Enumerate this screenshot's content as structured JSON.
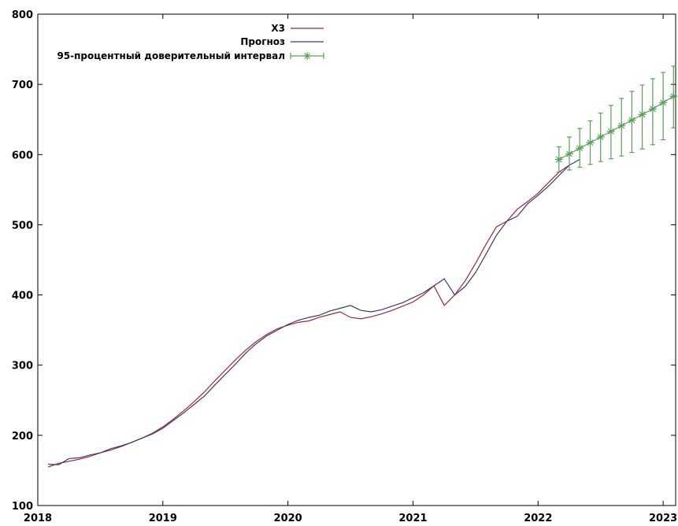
{
  "chart_data": {
    "type": "line",
    "title": "",
    "xlabel": "",
    "ylabel": "",
    "xlim": [
      2018.0,
      2023.1
    ],
    "ylim": [
      100,
      800
    ],
    "x_ticks": [
      "2018",
      "2019",
      "2020",
      "2021",
      "2022",
      "2023"
    ],
    "y_ticks": [
      "100",
      "200",
      "300",
      "400",
      "500",
      "600",
      "700",
      "800"
    ],
    "grid": false,
    "legend_position": "top-left",
    "series": [
      {
        "name": "X3",
        "color": "#a0282f",
        "points": [
          [
            2018.083,
            155
          ],
          [
            2018.167,
            160
          ],
          [
            2018.25,
            163
          ],
          [
            2018.333,
            166
          ],
          [
            2018.417,
            170
          ],
          [
            2018.5,
            175
          ],
          [
            2018.583,
            179
          ],
          [
            2018.667,
            184
          ],
          [
            2018.75,
            190
          ],
          [
            2018.833,
            196
          ],
          [
            2018.917,
            203
          ],
          [
            2019.0,
            212
          ],
          [
            2019.083,
            223
          ],
          [
            2019.167,
            235
          ],
          [
            2019.25,
            248
          ],
          [
            2019.333,
            262
          ],
          [
            2019.417,
            278
          ],
          [
            2019.5,
            293
          ],
          [
            2019.583,
            308
          ],
          [
            2019.667,
            322
          ],
          [
            2019.75,
            334
          ],
          [
            2019.833,
            344
          ],
          [
            2019.917,
            352
          ],
          [
            2020.0,
            357
          ],
          [
            2020.083,
            361
          ],
          [
            2020.167,
            363
          ],
          [
            2020.25,
            368
          ],
          [
            2020.333,
            372
          ],
          [
            2020.417,
            376
          ],
          [
            2020.5,
            368
          ],
          [
            2020.583,
            366
          ],
          [
            2020.667,
            369
          ],
          [
            2020.75,
            373
          ],
          [
            2020.833,
            378
          ],
          [
            2020.917,
            384
          ],
          [
            2021.0,
            390
          ],
          [
            2021.083,
            400
          ],
          [
            2021.167,
            413
          ],
          [
            2021.25,
            385
          ],
          [
            2021.333,
            400
          ],
          [
            2021.417,
            420
          ],
          [
            2021.5,
            445
          ],
          [
            2021.583,
            472
          ],
          [
            2021.667,
            497
          ],
          [
            2021.75,
            505
          ],
          [
            2021.833,
            522
          ],
          [
            2021.917,
            533
          ],
          [
            2022.0,
            545
          ],
          [
            2022.083,
            560
          ],
          [
            2022.167,
            575
          ],
          [
            2022.25,
            585
          ]
        ]
      },
      {
        "name": "Прогноз",
        "color": "#3a3a7a",
        "points": [
          [
            2018.083,
            159
          ],
          [
            2018.167,
            158
          ],
          [
            2018.25,
            167
          ],
          [
            2018.333,
            168
          ],
          [
            2018.417,
            172
          ],
          [
            2018.5,
            175
          ],
          [
            2018.583,
            181
          ],
          [
            2018.667,
            185
          ],
          [
            2018.75,
            190
          ],
          [
            2018.833,
            196
          ],
          [
            2018.917,
            202
          ],
          [
            2019.0,
            210
          ],
          [
            2019.083,
            221
          ],
          [
            2019.167,
            232
          ],
          [
            2019.25,
            244
          ],
          [
            2019.333,
            256
          ],
          [
            2019.417,
            272
          ],
          [
            2019.5,
            287
          ],
          [
            2019.583,
            302
          ],
          [
            2019.667,
            318
          ],
          [
            2019.75,
            331
          ],
          [
            2019.833,
            342
          ],
          [
            2019.917,
            350
          ],
          [
            2020.0,
            358
          ],
          [
            2020.083,
            364
          ],
          [
            2020.167,
            368
          ],
          [
            2020.25,
            371
          ],
          [
            2020.333,
            377
          ],
          [
            2020.417,
            381
          ],
          [
            2020.5,
            385
          ],
          [
            2020.583,
            378
          ],
          [
            2020.667,
            376
          ],
          [
            2020.75,
            379
          ],
          [
            2020.833,
            384
          ],
          [
            2020.917,
            389
          ],
          [
            2021.0,
            396
          ],
          [
            2021.083,
            403
          ],
          [
            2021.167,
            413
          ],
          [
            2021.25,
            423
          ],
          [
            2021.333,
            400
          ],
          [
            2021.417,
            412
          ],
          [
            2021.5,
            432
          ],
          [
            2021.583,
            458
          ],
          [
            2021.667,
            485
          ],
          [
            2021.75,
            505
          ],
          [
            2021.833,
            512
          ],
          [
            2021.917,
            530
          ],
          [
            2022.0,
            542
          ],
          [
            2022.083,
            555
          ],
          [
            2022.167,
            570
          ],
          [
            2022.25,
            585
          ],
          [
            2022.333,
            593
          ]
        ]
      },
      {
        "name": "95-процентный доверительный интервал",
        "color": "#5aa05a",
        "points": [
          [
            2022.167,
            593,
            575,
            611
          ],
          [
            2022.25,
            601,
            578,
            625
          ],
          [
            2022.333,
            609,
            582,
            637
          ],
          [
            2022.417,
            617,
            586,
            648
          ],
          [
            2022.5,
            625,
            590,
            659
          ],
          [
            2022.583,
            633,
            594,
            670
          ],
          [
            2022.667,
            641,
            598,
            680
          ],
          [
            2022.75,
            649,
            603,
            690
          ],
          [
            2022.833,
            657,
            608,
            699
          ],
          [
            2022.917,
            665,
            614,
            708
          ],
          [
            2023.0,
            674,
            621,
            717
          ],
          [
            2023.083,
            683,
            638,
            726
          ]
        ]
      }
    ]
  }
}
